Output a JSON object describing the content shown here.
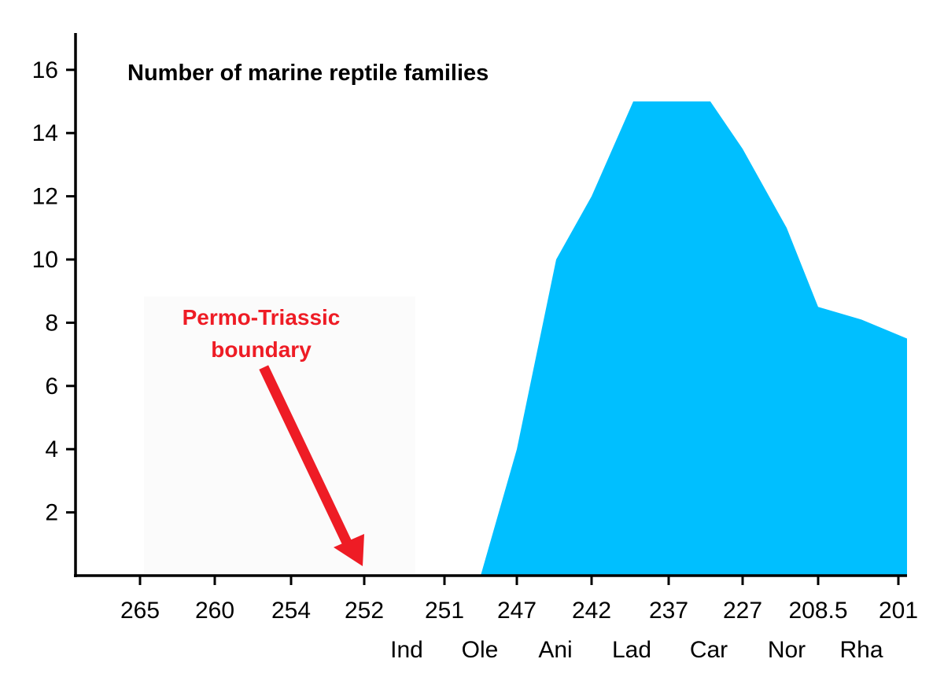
{
  "colors": {
    "area_fill": "#00BFFF",
    "axis": "#000000",
    "annotation": "#EE1C25",
    "background": "#FFFFFF"
  },
  "chart_data": {
    "type": "area",
    "title": "Number of marine reptile families",
    "xlabel": "",
    "ylabel": "",
    "grid": false,
    "legend": false,
    "ylim": [
      0,
      17
    ],
    "y_ticks": [
      2,
      4,
      6,
      8,
      10,
      12,
      14,
      16
    ],
    "x_tick_labels": [
      "265",
      "260",
      "254",
      "252",
      "251",
      "247",
      "242",
      "237",
      "227",
      "208.5",
      "201"
    ],
    "stage_labels": [
      "Ind",
      "Ole",
      "Ani",
      "Lad",
      "Car",
      "Nor",
      "Rha"
    ],
    "series": [
      {
        "x": [
          "265",
          "260",
          "254",
          "252",
          "251",
          "247",
          "242",
          "237",
          "227",
          "208.5",
          "201"
        ],
        "values": [
          0,
          0,
          0,
          0,
          0,
          4,
          12,
          15,
          13.5,
          8.5,
          7.5
        ]
      }
    ],
    "annotations": [
      {
        "text_lines": [
          "Permo-Triassic",
          "boundary"
        ],
        "points_to": "252"
      }
    ]
  }
}
